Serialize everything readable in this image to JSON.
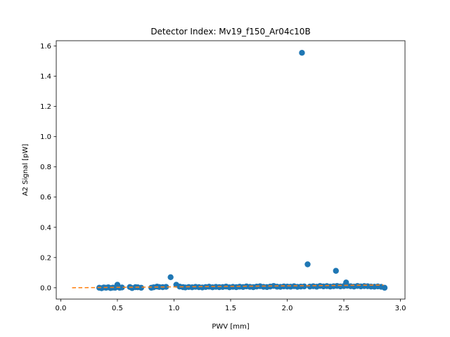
{
  "chart_data": {
    "type": "scatter",
    "title": "Detector Index: Mv19_f150_Ar04c10B",
    "xlabel": "PWV [mm]",
    "ylabel": "A2 Signal [pW]",
    "xlim": [
      -0.04,
      3.04
    ],
    "ylim": [
      -0.075,
      1.635
    ],
    "xticks": [
      0.0,
      0.5,
      1.0,
      1.5,
      2.0,
      2.5,
      3.0
    ],
    "xtick_labels": [
      "0.0",
      "0.5",
      "1.0",
      "1.5",
      "2.0",
      "2.5",
      "3.0"
    ],
    "yticks": [
      0.0,
      0.2,
      0.4,
      0.6,
      0.8,
      1.0,
      1.2,
      1.4,
      1.6
    ],
    "ytick_labels": [
      "0.0",
      "0.2",
      "0.4",
      "0.6",
      "0.8",
      "1.0",
      "1.2",
      "1.4",
      "1.6"
    ],
    "grid": false,
    "colors": {
      "points": "#1f77b4",
      "fit": "#ff7f0e"
    },
    "series": [
      {
        "kind": "points",
        "x": [
          0.34,
          0.36,
          0.38,
          0.4,
          0.42,
          0.44,
          0.46,
          0.48,
          0.5,
          0.52,
          0.54,
          0.61,
          0.63,
          0.66,
          0.68,
          0.71,
          0.8,
          0.82,
          0.85,
          0.87,
          0.9,
          0.93,
          0.97,
          1.02,
          1.05,
          1.08,
          1.1,
          1.13,
          1.16,
          1.19,
          1.22,
          1.25,
          1.28,
          1.31,
          1.34,
          1.37,
          1.4,
          1.43,
          1.46,
          1.49,
          1.52,
          1.55,
          1.58,
          1.61,
          1.64,
          1.67,
          1.7,
          1.73,
          1.76,
          1.79,
          1.82,
          1.85,
          1.88,
          1.91,
          1.94,
          1.97,
          2.0,
          2.03,
          2.06,
          2.09,
          2.12,
          2.13,
          2.15,
          2.18,
          2.2,
          2.23,
          2.26,
          2.29,
          2.32,
          2.35,
          2.38,
          2.41,
          2.43,
          2.44,
          2.47,
          2.5,
          2.52,
          2.53,
          2.56,
          2.59,
          2.62,
          2.65,
          2.68,
          2.71,
          2.74,
          2.77,
          2.8,
          2.83,
          2.86
        ],
        "y": [
          0.0,
          -0.003,
          0.002,
          0.0,
          0.003,
          -0.002,
          0.001,
          0.0,
          0.02,
          0.0,
          0.002,
          0.005,
          -0.002,
          0.004,
          0.003,
          0.0,
          0.0,
          0.003,
          0.008,
          0.005,
          0.004,
          0.006,
          0.07,
          0.02,
          0.008,
          0.004,
          0.002,
          0.005,
          0.003,
          0.006,
          0.004,
          0.002,
          0.005,
          0.007,
          0.003,
          0.006,
          0.004,
          0.005,
          0.008,
          0.003,
          0.006,
          0.004,
          0.007,
          0.005,
          0.009,
          0.006,
          0.004,
          0.008,
          0.01,
          0.006,
          0.005,
          0.008,
          0.012,
          0.007,
          0.006,
          0.009,
          0.008,
          0.007,
          0.01,
          0.006,
          0.008,
          1.555,
          0.009,
          0.155,
          0.008,
          0.01,
          0.007,
          0.012,
          0.009,
          0.011,
          0.008,
          0.01,
          0.112,
          0.012,
          0.009,
          0.011,
          0.035,
          0.013,
          0.01,
          0.008,
          0.012,
          0.009,
          0.011,
          0.01,
          0.008,
          0.007,
          0.009,
          0.006,
          0.0
        ]
      },
      {
        "kind": "fit-line",
        "x": [
          0.1,
          2.85
        ],
        "y": [
          0.0,
          0.018
        ]
      }
    ]
  }
}
